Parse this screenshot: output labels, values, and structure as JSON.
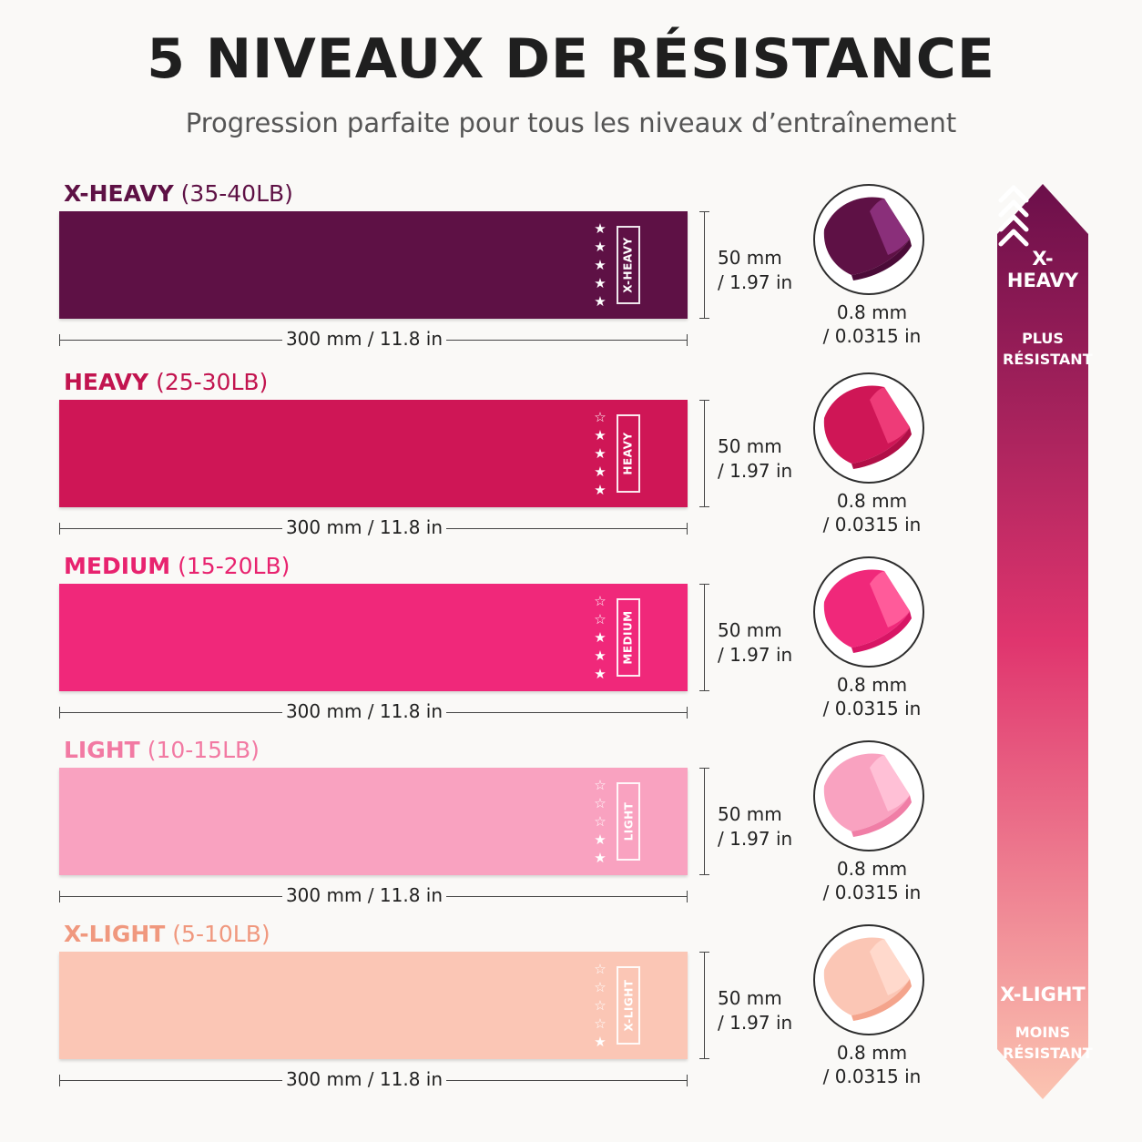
{
  "header": {
    "title": "5 NIVEAUX DE RÉSISTANCE",
    "subtitle": "Progression parfaite pour tous les niveaux d’entraînement"
  },
  "bands": [
    {
      "level": "X-HEAVY",
      "range": "(35-40LB)",
      "tag": "X-HEAVY",
      "stars_filled": 5,
      "stars_total": 5,
      "length": "300 mm / 11.8 in",
      "width_mm": "50 mm",
      "width_in": "/ 1.97 in",
      "thickness_mm": "0.8 mm",
      "thickness_in": "/ 0.0315 in",
      "color": "#5e1145",
      "label_color": "#5e1145",
      "light": "#8a2f7a",
      "dark": "#4b0b38"
    },
    {
      "level": "HEAVY",
      "range": "(25-30LB)",
      "tag": "HEAVY",
      "stars_filled": 4,
      "stars_total": 5,
      "length": "300 mm / 11.8 in",
      "width_mm": "50 mm",
      "width_in": "/ 1.97 in",
      "thickness_mm": "0.8 mm",
      "thickness_in": "/ 0.0315 in",
      "color": "#cf1656",
      "label_color": "#c2144f",
      "light": "#ee3b78",
      "dark": "#b10f47"
    },
    {
      "level": "MEDIUM",
      "range": "(15-20LB)",
      "tag": "MEDIUM",
      "stars_filled": 3,
      "stars_total": 5,
      "length": "300 mm / 11.8 in",
      "width_mm": "50 mm",
      "width_in": "/ 1.97 in",
      "thickness_mm": "0.8 mm",
      "thickness_in": "/ 0.0315 in",
      "color": "#f0287a",
      "label_color": "#e8236f",
      "light": "#ff5b9a",
      "dark": "#d81565"
    },
    {
      "level": "LIGHT",
      "range": "(10-15LB)",
      "tag": "LIGHT",
      "stars_filled": 2,
      "stars_total": 5,
      "length": "300 mm / 11.8 in",
      "width_mm": "50 mm",
      "width_in": "/ 1.97 in",
      "thickness_mm": "0.8 mm",
      "thickness_in": "/ 0.0315 in",
      "color": "#f9a2c0",
      "label_color": "#f27aa3",
      "light": "#ffc0d6",
      "dark": "#f07ea6"
    },
    {
      "level": "X-LIGHT",
      "range": "(5-10LB)",
      "tag": "X-LIGHT",
      "stars_filled": 1,
      "stars_total": 5,
      "length": "300 mm / 11.8 in",
      "width_mm": "50 mm",
      "width_in": "/ 1.97 in",
      "thickness_mm": "0.8 mm",
      "thickness_in": "/ 0.0315 in",
      "color": "#fbc6b5",
      "label_color": "#f0987e",
      "light": "#ffd9cc",
      "dark": "#f4a48c"
    }
  ],
  "scale": {
    "top_label": "X-HEAVY",
    "top_sub": "PLUS RÉSISTANT",
    "bottom_label": "X-LIGHT",
    "bottom_sub": "MOINS RÉSISTANT",
    "icon": "chevrons-up-icon",
    "color_top": "#6b0f4a",
    "color_mid": "#e0356e",
    "color_bottom": "#fbc4b1"
  }
}
